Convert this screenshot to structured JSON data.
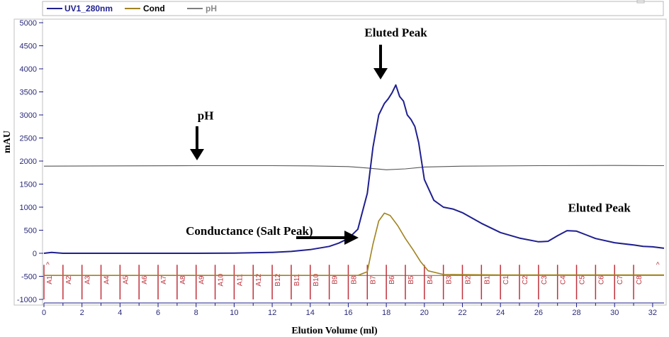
{
  "chart_data": {
    "type": "line",
    "xlabel": "Elution Volume (ml)",
    "ylabel": "mAU",
    "xlim": [
      0,
      32.6
    ],
    "ylim": [
      -1000,
      5000
    ],
    "xticks": [
      0,
      2,
      4,
      6,
      8,
      10,
      12,
      14,
      16,
      18,
      20,
      22,
      24,
      26,
      28,
      30,
      32
    ],
    "yticks": [
      -1000,
      -500,
      0,
      500,
      1000,
      1500,
      2000,
      2500,
      3000,
      3500,
      4000,
      4500,
      5000
    ],
    "grid": false,
    "legend_position": "top-left",
    "series": [
      {
        "name": "UV1_280nm",
        "color": "#1f1f8f",
        "x": [
          0,
          0.4,
          1,
          2,
          4,
          6,
          8,
          10,
          12,
          13,
          14,
          15,
          15.5,
          16,
          16.5,
          17,
          17.3,
          17.6,
          17.9,
          18.1,
          18.3,
          18.5,
          18.7,
          18.9,
          19.1,
          19.3,
          19.5,
          19.7,
          20,
          20.5,
          21,
          21.5,
          22,
          23,
          24,
          25,
          26,
          26.5,
          27,
          27.5,
          28,
          28.5,
          29,
          30,
          31,
          31.5,
          32,
          32.6
        ],
        "y": [
          0,
          20,
          0,
          0,
          0,
          0,
          0,
          5,
          20,
          40,
          80,
          150,
          220,
          320,
          520,
          1300,
          2300,
          3000,
          3250,
          3350,
          3480,
          3650,
          3400,
          3300,
          3000,
          2900,
          2750,
          2400,
          1600,
          1150,
          1000,
          960,
          880,
          650,
          450,
          330,
          250,
          260,
          380,
          490,
          480,
          400,
          320,
          230,
          180,
          150,
          140,
          110
        ]
      },
      {
        "name": "Cond",
        "color": "#a08320",
        "x": [
          0,
          16.5,
          17,
          17.3,
          17.6,
          17.9,
          18.2,
          18.6,
          19,
          19.4,
          19.8,
          20.2,
          21,
          24,
          28,
          32,
          32.6
        ],
        "y": [
          -480,
          -480,
          -400,
          200,
          700,
          870,
          820,
          600,
          320,
          80,
          -180,
          -380,
          -460,
          -470,
          -470,
          -470,
          -470
        ]
      },
      {
        "name": "pH",
        "color": "#555555",
        "x": [
          0,
          4,
          8,
          12,
          14,
          16,
          17,
          18,
          19,
          20,
          22,
          26,
          30,
          32.6
        ],
        "y": [
          1890,
          1895,
          1900,
          1900,
          1895,
          1880,
          1850,
          1810,
          1830,
          1870,
          1890,
          1900,
          1905,
          1900
        ]
      }
    ],
    "fractions": {
      "labels": [
        "A1",
        "A2",
        "A3",
        "A4",
        "A5",
        "A6",
        "A7",
        "A8",
        "A9",
        "A10",
        "A11",
        "A12",
        "B12",
        "B11",
        "B10",
        "B9",
        "B8",
        "B7",
        "B6",
        "B5",
        "B4",
        "B3",
        "B2",
        "B1",
        "C1",
        "C2",
        "C3",
        "C4",
        "C5",
        "C6",
        "C7",
        "C8"
      ],
      "positions": [
        0,
        1,
        2,
        3,
        4,
        5,
        6,
        7,
        8,
        9,
        10,
        11,
        12,
        13,
        14,
        15,
        16,
        17,
        18,
        19,
        20,
        21,
        22,
        23,
        24,
        25,
        26,
        27,
        28,
        29,
        30,
        31
      ],
      "color": "#c0303a"
    },
    "annotations": [
      {
        "text": "Eluted Peak",
        "x": 18.5,
        "y": 4700
      },
      {
        "text": "pH",
        "x": 8.5,
        "y": 2900
      },
      {
        "text": "Conductance (Salt Peak)",
        "x": 10.8,
        "y": 400
      },
      {
        "text": "Eluted Peak",
        "x": 29.2,
        "y": 900
      }
    ]
  }
}
